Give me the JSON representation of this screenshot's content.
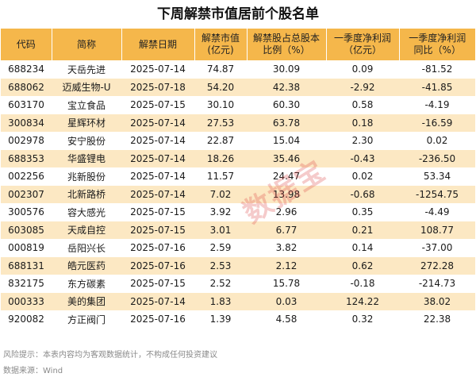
{
  "title": "下周解禁市值居前个股名单",
  "headers": [
    "代码",
    "简称",
    "解禁日期",
    "解禁市值\n(亿元)",
    "解禁股占总股本\n比例（%）",
    "一季度净利润\n（亿元）",
    "一季度净利润\n同比（%）"
  ],
  "rows": [
    [
      "688234",
      "天岳先进",
      "2025-07-14",
      "74.87",
      "30.09",
      "0.09",
      "-81.52"
    ],
    [
      "688062",
      "迈威生物-U",
      "2025-07-18",
      "54.20",
      "42.38",
      "-2.92",
      "-41.85"
    ],
    [
      "603170",
      "宝立食品",
      "2025-07-15",
      "30.10",
      "60.30",
      "0.58",
      "-4.19"
    ],
    [
      "300834",
      "星辉环材",
      "2025-07-14",
      "27.53",
      "63.78",
      "0.18",
      "-16.59"
    ],
    [
      "002978",
      "安宁股份",
      "2025-07-14",
      "22.87",
      "15.04",
      "2.30",
      "0.02"
    ],
    [
      "688353",
      "华盛锂电",
      "2025-07-14",
      "18.26",
      "35.46",
      "-0.43",
      "-236.50"
    ],
    [
      "002256",
      "兆新股份",
      "2025-07-14",
      "11.57",
      "24.47",
      "0.02",
      "53.34"
    ],
    [
      "002307",
      "北新路桥",
      "2025-07-14",
      "7.02",
      "13.98",
      "-0.68",
      "-1254.75"
    ],
    [
      "300576",
      "容大感光",
      "2025-07-15",
      "3.92",
      "2.96",
      "0.35",
      "-4.49"
    ],
    [
      "603085",
      "天成自控",
      "2025-07-15",
      "3.01",
      "6.77",
      "0.21",
      "108.77"
    ],
    [
      "000819",
      "岳阳兴长",
      "2025-07-16",
      "2.59",
      "3.82",
      "0.14",
      "-37.00"
    ],
    [
      "688131",
      "皓元医药",
      "2025-07-16",
      "2.53",
      "2.12",
      "0.62",
      "272.28"
    ],
    [
      "832175",
      "东方碳素",
      "2025-07-15",
      "2.52",
      "15.78",
      "-0.18",
      "-214.73"
    ],
    [
      "000333",
      "美的集团",
      "2025-07-14",
      "1.83",
      "0.03",
      "124.22",
      "38.02"
    ],
    [
      "920082",
      "方正阀门",
      "2025-07-16",
      "1.39",
      "4.58",
      "0.32",
      "22.38"
    ]
  ],
  "footer": {
    "risk_note": "风险提示：本表内容均为客观数据统计，不构成任何投资建议",
    "source": "数据来源：Wind"
  },
  "watermark": "数据宝",
  "colors": {
    "header_bg": "#f5b74b",
    "stripe_bg": "#fce8c3",
    "watermark": "#dc4646"
  }
}
